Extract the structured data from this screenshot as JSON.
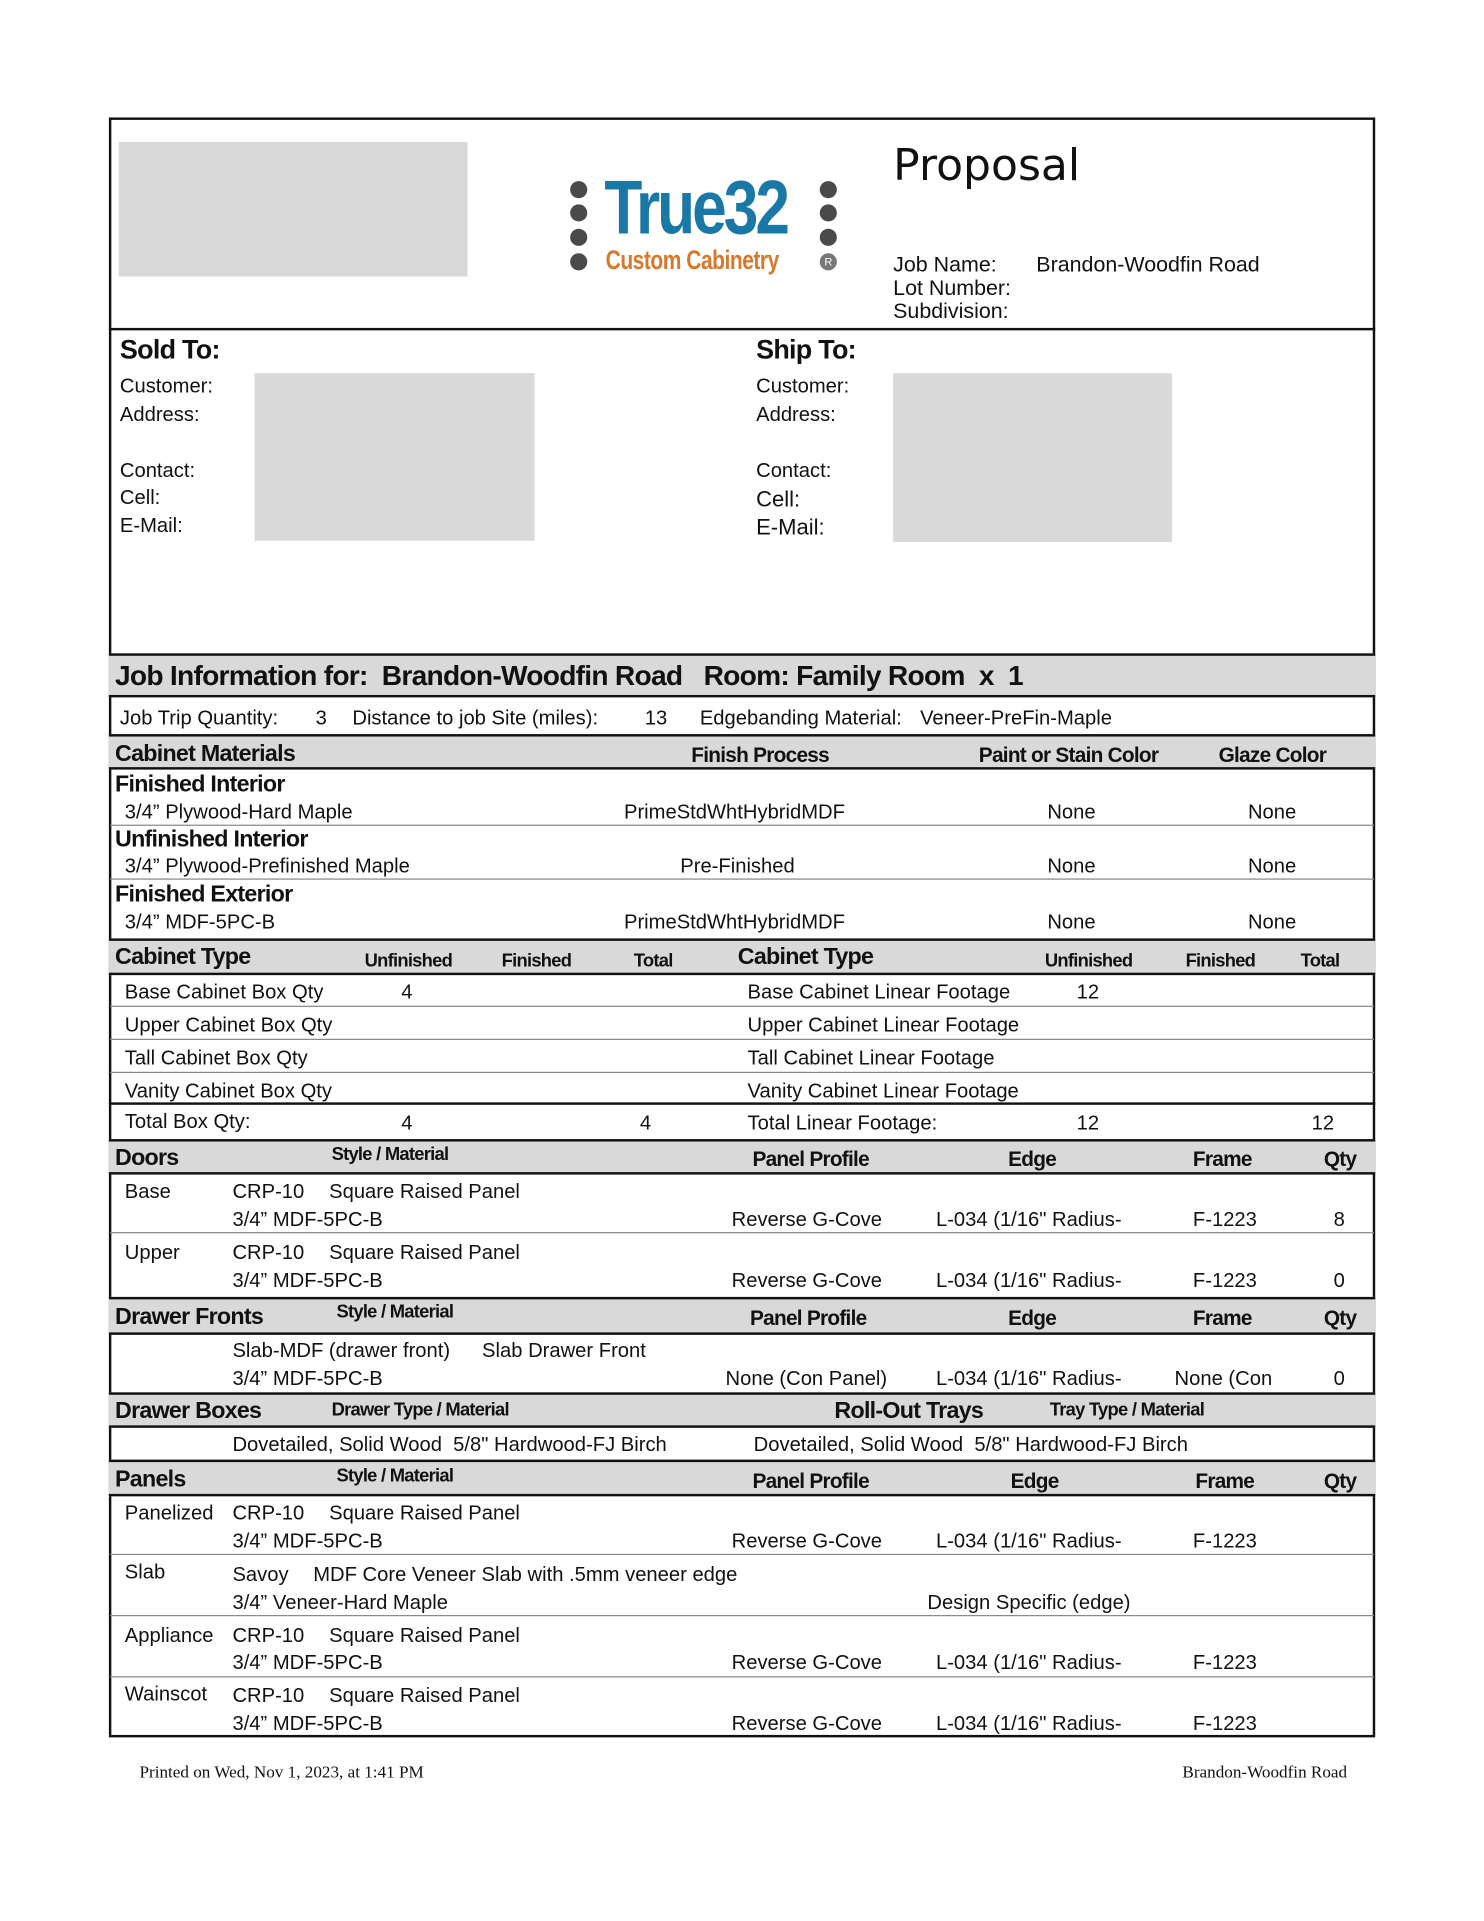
{
  "header": {
    "title": "Proposal",
    "logo": {
      "brand": "True32",
      "tagline": "Custom Cabinetry",
      "mark": "R",
      "brand_color": "#1a78a6",
      "tagline_color": "#d9772b"
    },
    "job_name_label": "Job Name:",
    "job_name": "Brandon-Woodfin Road",
    "lot_number_label": "Lot Number:",
    "subdivision_label": "Subdivision:"
  },
  "sold_to": {
    "title": "Sold To:",
    "customer": "Customer:",
    "address": "Address:",
    "contact": "Contact:",
    "cell": "Cell:",
    "email": "E-Mail:"
  },
  "ship_to": {
    "title": "Ship To:",
    "customer": "Customer:",
    "address": "Address:",
    "contact": "Contact:",
    "cell": "Cell:",
    "email": "E-Mail:"
  },
  "job_info": {
    "title": "Job Information for:  Brandon-Woodfin Road   Room: Family Room  x  1",
    "trip_label": "Job Trip Quantity:",
    "trip": "3",
    "distance_label": "Distance to job Site (miles):",
    "distance": "13",
    "edgebanding_label": "Edgebanding Material:",
    "edgebanding": "Veneer-PreFin-Maple"
  },
  "materials": {
    "headers": [
      "Cabinet Materials",
      "Finish Process",
      "Paint or Stain Color",
      "Glaze Color"
    ],
    "rows": [
      {
        "title": "Finished Interior",
        "material": "3/4” Plywood-Hard Maple",
        "finish": "PrimeStdWhtHybridMDF",
        "paint": "None",
        "glaze": "None"
      },
      {
        "title": "Unfinished Interior",
        "material": "3/4” Plywood-Prefinished Maple",
        "finish": "Pre-Finished",
        "paint": "None",
        "glaze": "None"
      },
      {
        "title": "Finished Exterior",
        "material": "3/4” MDF-5PC-B",
        "finish": "PrimeStdWhtHybridMDF",
        "paint": "None",
        "glaze": "None"
      }
    ]
  },
  "cabinet_type": {
    "headers": [
      "Cabinet Type",
      "Unfinished",
      "Finished",
      "Total",
      "Cabinet Type",
      "Unfinished",
      "Finished",
      "Total"
    ],
    "left": [
      {
        "label": "Base Cabinet Box Qty",
        "unfinished": "4"
      },
      {
        "label": "Upper Cabinet Box Qty"
      },
      {
        "label": "Tall Cabinet Box Qty"
      },
      {
        "label": "Vanity Cabinet Box Qty"
      },
      {
        "label": "Total Box Qty:",
        "unfinished": "4",
        "total": "4"
      }
    ],
    "right": [
      {
        "label": "Base Cabinet Linear Footage",
        "unfinished": "12"
      },
      {
        "label": "Upper Cabinet Linear Footage"
      },
      {
        "label": "Tall Cabinet Linear Footage"
      },
      {
        "label": "Vanity Cabinet Linear Footage"
      },
      {
        "label": "Total Linear Footage:",
        "unfinished": "12",
        "total": "12"
      }
    ]
  },
  "doors": {
    "headers": [
      "Doors",
      "Style / Material",
      "Panel Profile",
      "Edge",
      "Frame",
      "Qty"
    ],
    "rows": [
      {
        "type": "Base",
        "style": "CRP-10",
        "style_name": "Square Raised Panel",
        "material": "3/4” MDF-5PC-B",
        "profile": "Reverse G-Cove",
        "edge": "L-034 (1/16\" Radius-",
        "frame": "F-1223",
        "qty": "8"
      },
      {
        "type": "Upper",
        "style": "CRP-10",
        "style_name": "Square Raised Panel",
        "material": "3/4” MDF-5PC-B",
        "profile": "Reverse G-Cove",
        "edge": "L-034 (1/16\" Radius-",
        "frame": "F-1223",
        "qty": "0"
      }
    ]
  },
  "drawer_fronts": {
    "headers": [
      "Drawer Fronts",
      "Style / Material",
      "Panel Profile",
      "Edge",
      "Frame",
      "Qty"
    ],
    "row": {
      "style": "Slab-MDF (drawer front)",
      "style_name": "Slab Drawer Front",
      "material": "3/4” MDF-5PC-B",
      "profile": "None (Con Panel)",
      "edge": "L-034 (1/16\" Radius-",
      "frame": "None (Con",
      "qty": "0"
    }
  },
  "drawer_boxes": {
    "headers": [
      "Drawer Boxes",
      "Drawer Type / Material",
      "Roll-Out Trays",
      "Tray Type / Material"
    ],
    "drawer": "Dovetailed, Solid Wood  5/8\" Hardwood-FJ Birch",
    "tray": "Dovetailed, Solid Wood  5/8\" Hardwood-FJ Birch"
  },
  "panels": {
    "headers": [
      "Panels",
      "Style / Material",
      "Panel Profile",
      "Edge",
      "Frame",
      "Qty"
    ],
    "rows": [
      {
        "type": "Panelized",
        "style": "CRP-10",
        "style_name": "Square Raised Panel",
        "material": "3/4” MDF-5PC-B",
        "profile": "Reverse G-Cove",
        "edge": "L-034 (1/16\" Radius-",
        "frame": "F-1223"
      },
      {
        "type": "Slab",
        "style": "Savoy",
        "style_name": "MDF Core Veneer Slab with .5mm veneer edge",
        "material": "3/4” Veneer-Hard Maple",
        "edge": "Design Specific (edge)"
      },
      {
        "type": "Appliance",
        "style": "CRP-10",
        "style_name": "Square Raised Panel",
        "material": "3/4” MDF-5PC-B",
        "profile": "Reverse G-Cove",
        "edge": "L-034 (1/16\" Radius-",
        "frame": "F-1223"
      },
      {
        "type": "Wainscot",
        "style": "CRP-10",
        "style_name": "Square Raised Panel",
        "material": "3/4” MDF-5PC-B",
        "profile": "Reverse G-Cove",
        "edge": "L-034 (1/16\" Radius-",
        "frame": "F-1223"
      }
    ]
  },
  "footer": {
    "printed": "Printed on Wed, Nov 1, 2023, at 1:41 PM",
    "job": "Brandon-Woodfin Road"
  }
}
